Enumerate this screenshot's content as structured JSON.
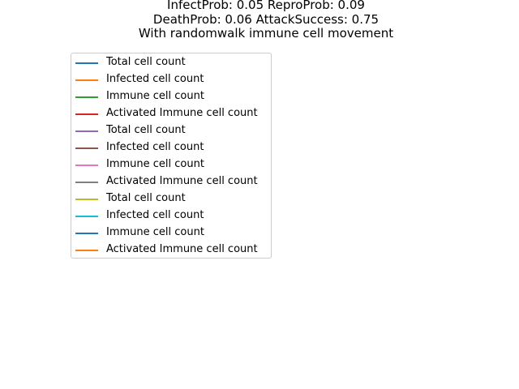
{
  "chart_data": {
    "type": "line",
    "title_lines": [
      "InfectProb: 0.05 ReproProb: 0.09",
      "DeathProb: 0.06 AttackSuccess: 0.75",
      "With randomwalk immune cell movement"
    ],
    "xlabel": "",
    "ylabel": "",
    "grid": false,
    "legend_position": "upper-left",
    "series": [
      {
        "name": "Total cell count",
        "color": "#1f77b4",
        "values": []
      },
      {
        "name": "Infected cell count",
        "color": "#ff7f0e",
        "values": []
      },
      {
        "name": "Immune cell count",
        "color": "#2ca02c",
        "values": []
      },
      {
        "name": "Activated Immune cell count",
        "color": "#d62728",
        "values": []
      },
      {
        "name": "Total cell count",
        "color": "#9467bd",
        "values": []
      },
      {
        "name": "Infected cell count",
        "color": "#8c564b",
        "values": []
      },
      {
        "name": "Immune cell count",
        "color": "#e377c2",
        "values": []
      },
      {
        "name": "Activated Immune cell count",
        "color": "#7f7f7f",
        "values": []
      },
      {
        "name": "Total cell count",
        "color": "#bcbd22",
        "values": []
      },
      {
        "name": "Infected cell count",
        "color": "#17becf",
        "values": []
      },
      {
        "name": "Immune cell count",
        "color": "#1f77b4",
        "values": []
      },
      {
        "name": "Activated Immune cell count",
        "color": "#ff7f0e",
        "values": []
      }
    ]
  }
}
